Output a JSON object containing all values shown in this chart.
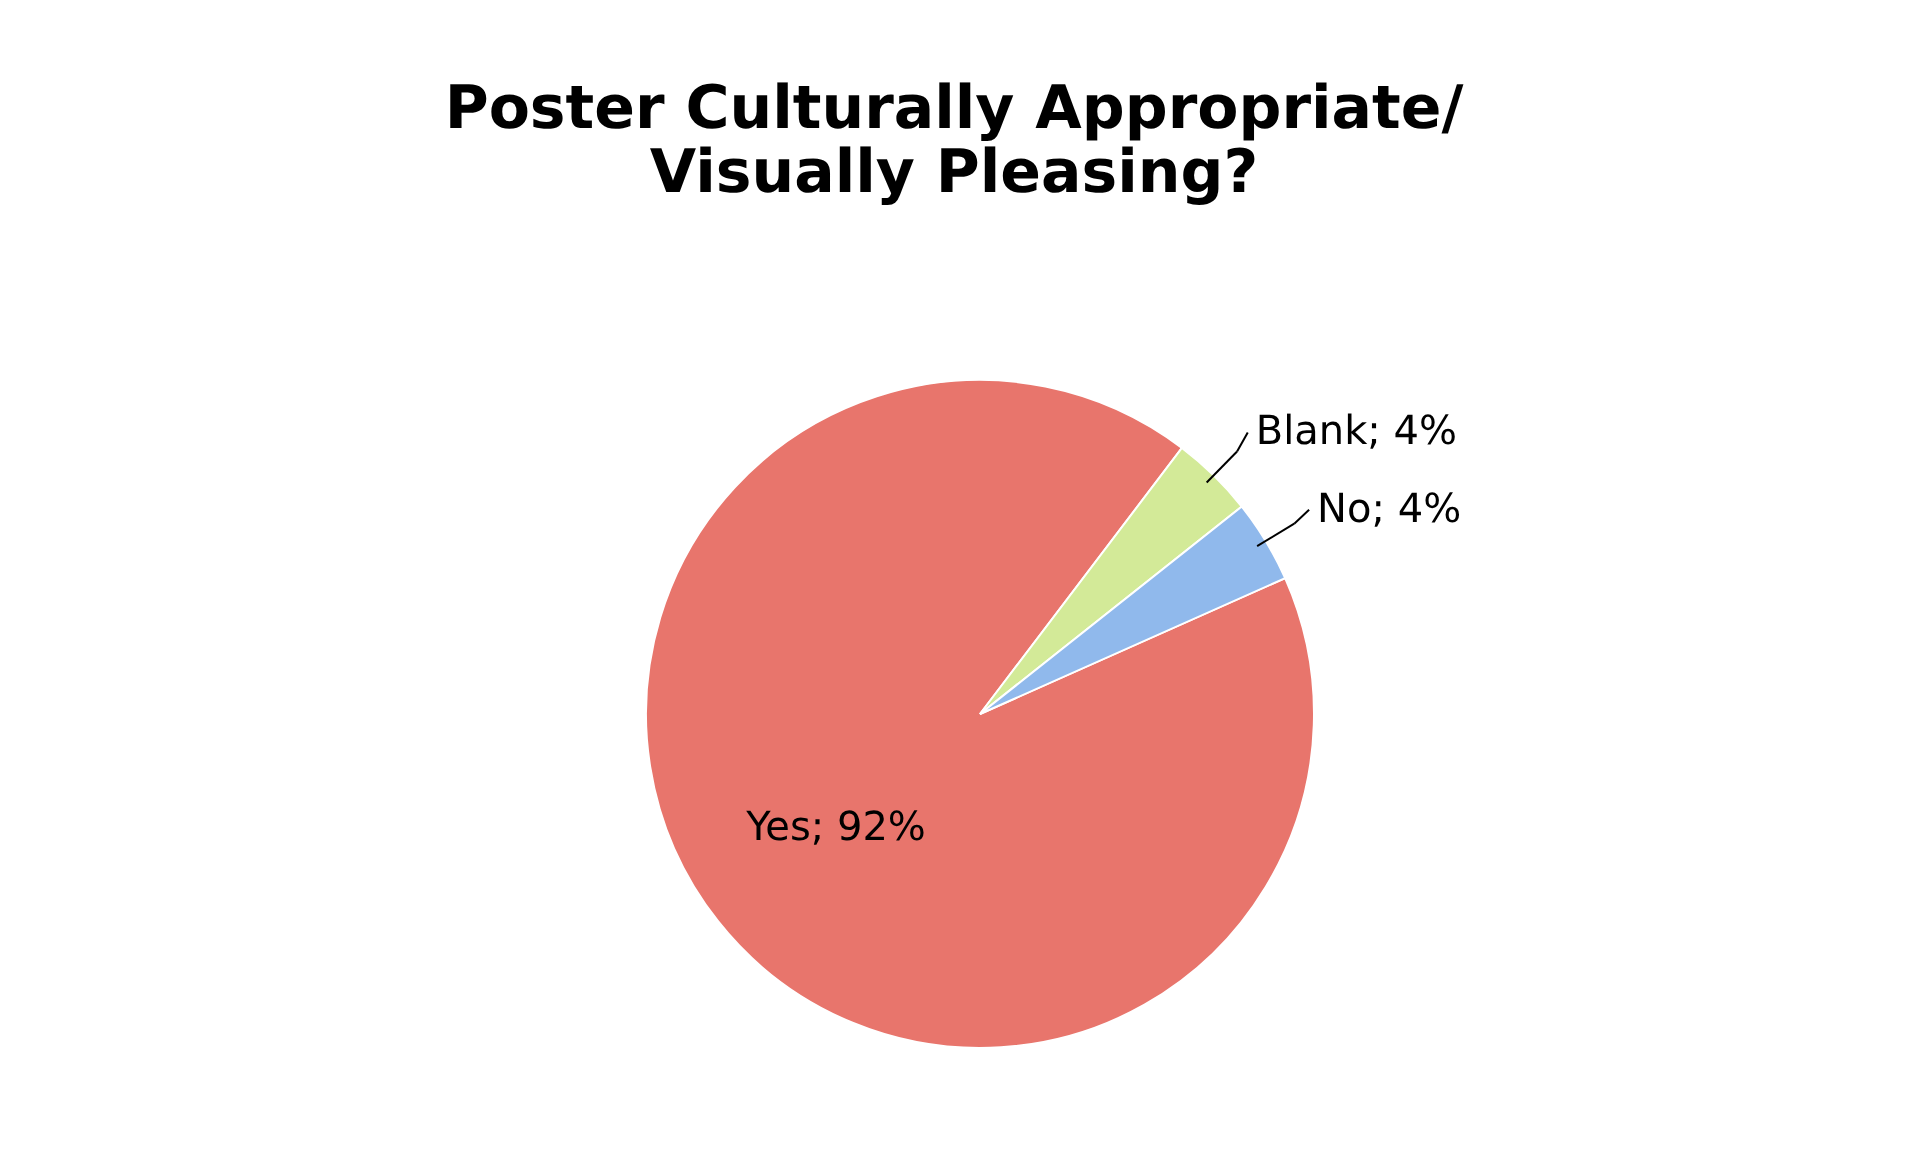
{
  "chart_data": {
    "type": "pie",
    "title": [
      "Poster Culturally Appropriate/",
      "Visually Pleasing?"
    ],
    "categories": [
      "Yes",
      "Blank",
      "No"
    ],
    "values": [
      92,
      4,
      4
    ],
    "colors": [
      "#e8756c",
      "#d3ea98",
      "#90b9ec"
    ],
    "value_labels": [
      "92%",
      "4%",
      "4%"
    ],
    "legend": false
  }
}
